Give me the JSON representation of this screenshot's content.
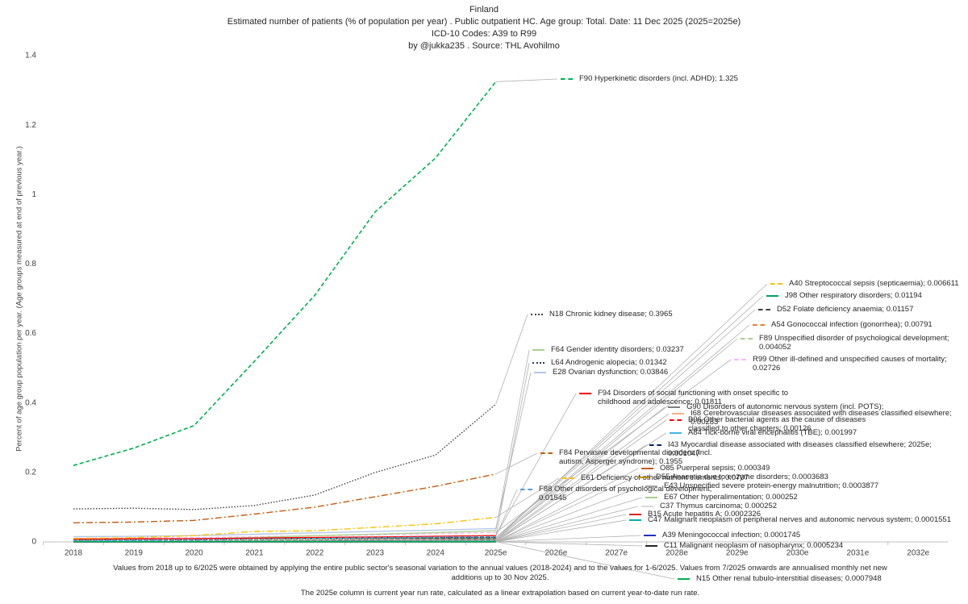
{
  "chart_data": {
    "type": "line",
    "title": "Finland",
    "subtitle": [
      "Estimated number of patients  (% of population per year) . Public outpatient HC. Age group: Total. Date: 11 Dec 2025 (2025=2025e)",
      "ICD-10 Codes: A39 to R99",
      "by @jukka235 . Source: THL Avohilmo"
    ],
    "y_label": "Percent of age group population per year. (Age groups measured at end of previous year.)",
    "notes": [
      "Values from 2018 up to 6/2025 were obtained by applying the entire public sector's seasonal variation to the annual values (2018-2024) and to the values for 1-6/2025. Values from 7/2025 onwards are annualised monthly net new additions up to 30 Nov 2025.",
      "The 2025e column is current year run rate, calculated as a linear extrapolation based on current year-to-date run rate."
    ],
    "categories": [
      "2018",
      "2019",
      "2020",
      "2021",
      "2022",
      "2023",
      "2024",
      "2025e",
      "2026e",
      "2027e",
      "2028e",
      "2029e",
      "2030e",
      "2031e",
      "2032e"
    ],
    "ylim": [
      0,
      1.4
    ],
    "yticks": [
      0,
      0.2,
      0.4,
      0.6,
      0.8,
      1,
      1.2,
      1.4
    ],
    "grid": false,
    "series": [
      {
        "name": "F90 Hyperkinetic disorders (incl. ADHD); 1.325",
        "color": "#00b050",
        "dash": "dashed",
        "values": [
          0.22,
          0.27,
          0.335,
          0.52,
          0.71,
          0.95,
          1.105,
          1.325,
          null,
          null,
          null,
          null,
          null,
          null,
          null
        ]
      },
      {
        "name": "A40 Streptococcal sepsis (septicaemia); 0.006611",
        "color": "#ffc000",
        "dash": "dashed",
        "values": [
          0.004,
          0.004,
          0.004,
          0.005,
          0.005,
          0.006,
          0.006,
          0.006611,
          null,
          null,
          null,
          null,
          null,
          null,
          null
        ]
      },
      {
        "name": "J98 Other respiratory disorders; 0.01194",
        "color": "#00a060",
        "dash": "solid",
        "values": [
          0.008,
          0.008,
          0.009,
          0.01,
          0.01,
          0.011,
          0.011,
          0.01194,
          null,
          null,
          null,
          null,
          null,
          null,
          null
        ]
      },
      {
        "name": "D52 Folate deficiency anaemia; 0.01157",
        "color": "#404040",
        "dash": "dashed",
        "values": [
          0.008,
          0.009,
          0.009,
          0.01,
          0.01,
          0.011,
          0.011,
          0.01157,
          null,
          null,
          null,
          null,
          null,
          null,
          null
        ]
      },
      {
        "name": "A54 Gonococcal infection (gonorrhea); 0.00791",
        "color": "#ed7d31",
        "dash": "dashed",
        "values": [
          0.003,
          0.004,
          0.003,
          0.003,
          0.004,
          0.006,
          0.007,
          0.00791,
          null,
          null,
          null,
          null,
          null,
          null,
          null
        ]
      },
      {
        "name": "F89 Unspecified disorder of psychological development; 0.004052",
        "color": "#a9d18e",
        "dash": "dashed",
        "values": [
          0.002,
          0.002,
          0.002,
          0.003,
          0.003,
          0.003,
          0.004,
          0.004052,
          null,
          null,
          null,
          null,
          null,
          null,
          null
        ]
      },
      {
        "name": "R99 Other ill-defined and unspecified causes of mortality; 0.02726",
        "color": "#ffb3ff",
        "dash": "dashed",
        "values": [
          0.01,
          0.011,
          0.012,
          0.015,
          0.018,
          0.02,
          0.024,
          0.02726,
          null,
          null,
          null,
          null,
          null,
          null,
          null
        ]
      },
      {
        "name": "N18 Chronic kidney disease; 0.3965",
        "color": "#404040",
        "dash": "dotted",
        "values": [
          0.095,
          0.097,
          0.093,
          0.105,
          0.135,
          0.2,
          0.25,
          0.3965,
          null,
          null,
          null,
          null,
          null,
          null,
          null
        ]
      },
      {
        "name": "F64 Gender identity disorders; 0.03237",
        "color": "#a9d18e",
        "dash": "solid",
        "values": [
          0.005,
          0.007,
          0.009,
          0.013,
          0.018,
          0.022,
          0.027,
          0.03237,
          null,
          null,
          null,
          null,
          null,
          null,
          null
        ]
      },
      {
        "name": "L64 Androgenic alopecia; 0.01342",
        "color": "#203864",
        "dash": "dotted",
        "values": [
          0.005,
          0.006,
          0.006,
          0.008,
          0.009,
          0.01,
          0.012,
          0.01342,
          null,
          null,
          null,
          null,
          null,
          null,
          null
        ]
      },
      {
        "name": "E28 Ovarian dysfunction; 0.03846",
        "color": "#b4c7e7",
        "dash": "solid",
        "values": [
          0.015,
          0.016,
          0.018,
          0.022,
          0.026,
          0.03,
          0.034,
          0.03846,
          null,
          null,
          null,
          null,
          null,
          null,
          null
        ]
      },
      {
        "name": "F94 Disorders of social functioning with onset specific to childhood and adolescence; 0.01811",
        "color": "#ff0000",
        "dash": "solid",
        "values": [
          0.008,
          0.009,
          0.009,
          0.011,
          0.013,
          0.014,
          0.016,
          0.01811,
          null,
          null,
          null,
          null,
          null,
          null,
          null
        ]
      },
      {
        "name": "G90 Disorders of autonomic nervous system (incl. POTS);",
        "color": "#7f7f7f",
        "dash": "solid",
        "values": [
          0.001,
          0.001,
          0.002,
          0.003,
          0.004,
          0.005,
          0.006,
          0.007,
          null,
          null,
          null,
          null,
          null,
          null,
          null
        ]
      },
      {
        "name": "I68 Cerebrovascular diseases associated with diseases classified elsewhere; 0.00283",
        "color": "#f4b183",
        "dash": "solid",
        "values": [
          0.002,
          0.002,
          0.002,
          0.002,
          0.002,
          0.0025,
          0.0027,
          0.00283,
          null,
          null,
          null,
          null,
          null,
          null,
          null
        ]
      },
      {
        "name": "B96 Other bacterial agents as the cause of diseases classified to other chapters; 0.00126",
        "color": "#ff0000",
        "dash": "dashed",
        "values": [
          0.001,
          0.001,
          0.001,
          0.001,
          0.0011,
          0.0012,
          0.0012,
          0.00126,
          null,
          null,
          null,
          null,
          null,
          null,
          null
        ]
      },
      {
        "name": "A84 Tick-borne viral encephalitis (TBE); 0.001997",
        "color": "#41b6e6",
        "dash": "solid",
        "values": [
          0.0015,
          0.0016,
          0.0017,
          0.0018,
          0.0018,
          0.0019,
          0.0019,
          0.001997,
          null,
          null,
          null,
          null,
          null,
          null,
          null
        ]
      },
      {
        "name": "I43 Myocardial disease associated with diseases classified elsewhere; 2025e; 0.001047",
        "color": "#002060",
        "dash": "dashed",
        "values": [
          0.0009,
          0.0009,
          0.0009,
          0.001,
          0.001,
          0.001,
          0.001,
          0.001047,
          null,
          null,
          null,
          null,
          null,
          null,
          null
        ]
      },
      {
        "name": "F84 Pervasive developmental disorders (incl. autism, Asperger syndrome); 0.1955",
        "color": "#c55a11",
        "dash": "dashdot",
        "values": [
          0.055,
          0.057,
          0.062,
          0.08,
          0.1,
          0.13,
          0.16,
          0.1955,
          null,
          null,
          null,
          null,
          null,
          null,
          null
        ]
      },
      {
        "name": "O85 Puerperal sepsis; 0.000349",
        "color": "#c55a11",
        "dash": "solid",
        "values": [
          0.0003,
          0.0003,
          0.0003,
          0.0003,
          0.0003,
          0.00033,
          0.00034,
          0.000349,
          null,
          null,
          null,
          null,
          null,
          null,
          null
        ]
      },
      {
        "name": "E61 Deficiency of other nutrient elements; 0.0707",
        "color": "#ffc000",
        "dash": "dashdot",
        "values": [
          0.01,
          0.012,
          0.018,
          0.03,
          0.032,
          0.042,
          0.052,
          0.0707,
          null,
          null,
          null,
          null,
          null,
          null,
          null
        ]
      },
      {
        "name": "D55 Anaemia due to enzyme disorders; 0.0003683",
        "color": "#bf9000",
        "dash": "solid",
        "values": [
          0.0003,
          0.0003,
          0.0003,
          0.0003,
          0.0003,
          0.00034,
          0.00035,
          0.0003683,
          null,
          null,
          null,
          null,
          null,
          null,
          null
        ]
      },
      {
        "name": "F88 Other disorders of psychological development; 0.01545",
        "color": "#5b9bd5",
        "dash": "dashed",
        "values": [
          0.004,
          0.005,
          0.006,
          0.008,
          0.01,
          0.012,
          0.014,
          0.01545,
          null,
          null,
          null,
          null,
          null,
          null,
          null
        ]
      },
      {
        "name": "E43 Unspecified severe protein-energy malnutrition; 0.0003877",
        "color": "#a5a5a5",
        "dash": "solid",
        "values": [
          0.0003,
          0.0003,
          0.0003,
          0.0003,
          0.00035,
          0.00036,
          0.00037,
          0.0003877,
          null,
          null,
          null,
          null,
          null,
          null,
          null
        ]
      },
      {
        "name": "E67 Other hyperalimentation; 0.000252",
        "color": "#a9d18e",
        "dash": "solid",
        "values": [
          0.0002,
          0.0002,
          0.0002,
          0.0002,
          0.0002,
          0.00023,
          0.00024,
          0.000252,
          null,
          null,
          null,
          null,
          null,
          null,
          null
        ]
      },
      {
        "name": "C37 Thymus carcinoma; 0.000252",
        "color": "#d9d9d9",
        "dash": "solid",
        "values": [
          0.0002,
          0.0002,
          0.0002,
          0.0002,
          0.0002,
          0.00023,
          0.00024,
          0.000252,
          null,
          null,
          null,
          null,
          null,
          null,
          null
        ]
      },
      {
        "name": "B15 Acute hepatitis A; 0.0002326",
        "color": "#e02020",
        "dash": "solid",
        "values": [
          0.0002,
          0.0002,
          0.0002,
          0.0002,
          0.0002,
          0.00021,
          0.00022,
          0.0002326,
          null,
          null,
          null,
          null,
          null,
          null,
          null
        ]
      },
      {
        "name": "C47 Malignant neoplasm of peripheral nerves and autonomic nervous system; 0.0001551",
        "color": "#00b0b0",
        "dash": "solid",
        "values": [
          0.00015,
          0.00015,
          0.00015,
          0.00015,
          0.00015,
          0.00015,
          0.00015,
          0.0001551,
          null,
          null,
          null,
          null,
          null,
          null,
          null
        ]
      },
      {
        "name": "A39 Meningococcal infection; 0.0001745",
        "color": "#2030c0",
        "dash": "solid",
        "values": [
          0.00015,
          0.00015,
          0.00015,
          0.00016,
          0.00016,
          0.00017,
          0.00017,
          0.0001745,
          null,
          null,
          null,
          null,
          null,
          null,
          null
        ]
      },
      {
        "name": "C11 Malignant neoplasm of nasopharynx; 0.0005234",
        "color": "#262626",
        "dash": "solid",
        "values": [
          0.0005,
          0.0005,
          0.0005,
          0.0005,
          0.0005,
          0.0005,
          0.00051,
          0.0005234,
          null,
          null,
          null,
          null,
          null,
          null,
          null
        ]
      },
      {
        "name": "N15 Other renal tubulo-interstitial diseases; 0.0007948",
        "color": "#00b050",
        "dash": "solid",
        "values": [
          0.0007,
          0.0007,
          0.0007,
          0.0007,
          0.00075,
          0.00076,
          0.00078,
          0.0007948,
          null,
          null,
          null,
          null,
          null,
          null,
          null
        ]
      }
    ]
  }
}
